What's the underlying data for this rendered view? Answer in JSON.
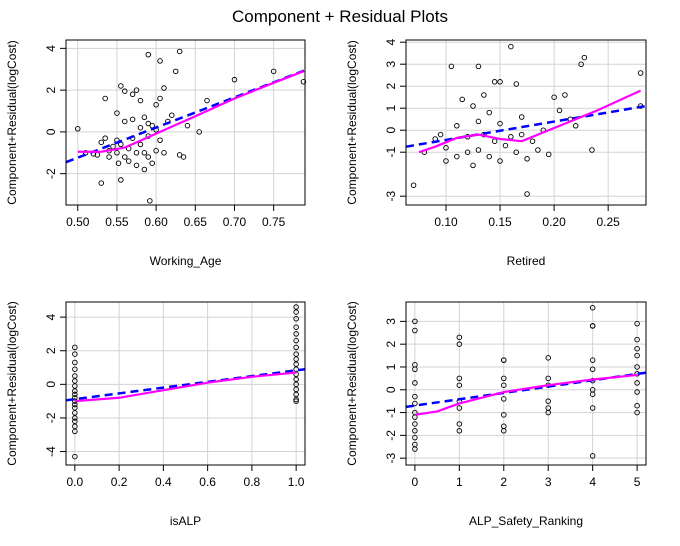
{
  "figure": {
    "title": "Component + Residual Plots",
    "colors": {
      "points": "#000000",
      "linear_fit": "#0000ff",
      "smooth_fit": "#ff00ff",
      "grid": "#d3d3d3"
    }
  },
  "chart_data": [
    {
      "type": "scatter",
      "xlabel": "Working_Age",
      "ylabel": "Component+Residual(logCost)",
      "xlim": [
        0.485,
        0.79
      ],
      "ylim": [
        -3.5,
        4.4
      ],
      "xticks": [
        0.5,
        0.55,
        0.6,
        0.65,
        0.7,
        0.75
      ],
      "xtick_labels": [
        "0.50",
        "0.55",
        "0.60",
        "0.65",
        "0.70",
        "0.75"
      ],
      "yticks": [
        -2,
        0,
        2,
        4
      ],
      "ytick_labels": [
        "-2",
        "0",
        "2",
        "4"
      ],
      "grid": true,
      "points": [
        [
          0.5,
          0.15
        ],
        [
          0.51,
          -1.0
        ],
        [
          0.52,
          -1.05
        ],
        [
          0.525,
          -1.1
        ],
        [
          0.53,
          -2.45
        ],
        [
          0.53,
          -0.5
        ],
        [
          0.535,
          1.6
        ],
        [
          0.535,
          -0.3
        ],
        [
          0.54,
          -0.9
        ],
        [
          0.54,
          -1.2
        ],
        [
          0.545,
          -0.7
        ],
        [
          0.55,
          0.9
        ],
        [
          0.55,
          -1.0
        ],
        [
          0.55,
          -0.4
        ],
        [
          0.552,
          -1.5
        ],
        [
          0.555,
          2.2
        ],
        [
          0.555,
          -0.6
        ],
        [
          0.555,
          -2.3
        ],
        [
          0.56,
          1.95
        ],
        [
          0.56,
          -1.2
        ],
        [
          0.56,
          0.5
        ],
        [
          0.565,
          -0.8
        ],
        [
          0.565,
          -1.4
        ],
        [
          0.57,
          1.8
        ],
        [
          0.57,
          -0.3
        ],
        [
          0.57,
          0.6
        ],
        [
          0.575,
          2.0
        ],
        [
          0.575,
          -1.0
        ],
        [
          0.575,
          -1.6
        ],
        [
          0.58,
          1.5
        ],
        [
          0.58,
          -0.6
        ],
        [
          0.58,
          0.2
        ],
        [
          0.585,
          -1.0
        ],
        [
          0.585,
          -1.8
        ],
        [
          0.585,
          0.7
        ],
        [
          0.59,
          3.7
        ],
        [
          0.59,
          -1.2
        ],
        [
          0.59,
          0.4
        ],
        [
          0.59,
          -0.2
        ],
        [
          0.592,
          -3.3
        ],
        [
          0.595,
          0.3
        ],
        [
          0.595,
          -1.5
        ],
        [
          0.6,
          1.3
        ],
        [
          0.6,
          -0.9
        ],
        [
          0.6,
          0.1
        ],
        [
          0.605,
          3.4
        ],
        [
          0.605,
          1.6
        ],
        [
          0.605,
          -0.4
        ],
        [
          0.61,
          -1.0
        ],
        [
          0.61,
          2.1
        ],
        [
          0.615,
          0.5
        ],
        [
          0.62,
          0.8
        ],
        [
          0.625,
          2.9
        ],
        [
          0.63,
          3.85
        ],
        [
          0.63,
          -1.1
        ],
        [
          0.635,
          -1.2
        ],
        [
          0.64,
          0.3
        ],
        [
          0.655,
          0.0
        ],
        [
          0.665,
          1.5
        ],
        [
          0.7,
          2.5
        ],
        [
          0.75,
          2.9
        ],
        [
          0.788,
          2.4
        ]
      ],
      "linear_fit": [
        [
          0.485,
          -1.45
        ],
        [
          0.79,
          2.95
        ]
      ],
      "smooth_fit": [
        [
          0.5,
          -0.95
        ],
        [
          0.53,
          -0.95
        ],
        [
          0.56,
          -0.75
        ],
        [
          0.59,
          -0.25
        ],
        [
          0.62,
          0.25
        ],
        [
          0.65,
          0.75
        ],
        [
          0.7,
          1.6
        ],
        [
          0.75,
          2.35
        ],
        [
          0.788,
          2.9
        ]
      ]
    },
    {
      "type": "scatter",
      "xlabel": "Retired",
      "ylabel": "Component+Residual(logCost)",
      "xlim": [
        0.063,
        0.285
      ],
      "ylim": [
        -3.4,
        4.1
      ],
      "xticks": [
        0.1,
        0.15,
        0.2,
        0.25
      ],
      "xtick_labels": [
        "0.10",
        "0.15",
        "0.20",
        "0.25"
      ],
      "yticks": [
        -3,
        -1,
        0,
        1,
        2,
        3,
        4
      ],
      "ytick_labels": [
        "-3",
        "-1",
        "0",
        "1",
        "2",
        "3",
        "4"
      ],
      "grid": true,
      "points": [
        [
          0.07,
          -2.5
        ],
        [
          0.08,
          -1.0
        ],
        [
          0.09,
          -0.4
        ],
        [
          0.095,
          -0.2
        ],
        [
          0.1,
          -1.4
        ],
        [
          0.1,
          -0.8
        ],
        [
          0.105,
          2.9
        ],
        [
          0.11,
          -1.2
        ],
        [
          0.11,
          0.2
        ],
        [
          0.115,
          1.4
        ],
        [
          0.12,
          -1.0
        ],
        [
          0.12,
          -0.3
        ],
        [
          0.125,
          1.1
        ],
        [
          0.125,
          -1.6
        ],
        [
          0.13,
          2.9
        ],
        [
          0.13,
          0.4
        ],
        [
          0.13,
          -0.9
        ],
        [
          0.135,
          1.6
        ],
        [
          0.135,
          -0.2
        ],
        [
          0.14,
          -1.2
        ],
        [
          0.14,
          0.8
        ],
        [
          0.145,
          2.2
        ],
        [
          0.145,
          -0.5
        ],
        [
          0.15,
          2.2
        ],
        [
          0.15,
          -1.4
        ],
        [
          0.15,
          0.3
        ],
        [
          0.155,
          -0.7
        ],
        [
          0.16,
          3.8
        ],
        [
          0.16,
          -0.3
        ],
        [
          0.165,
          2.1
        ],
        [
          0.165,
          -1.0
        ],
        [
          0.17,
          -0.2
        ],
        [
          0.17,
          0.6
        ],
        [
          0.175,
          -2.9
        ],
        [
          0.175,
          -1.3
        ],
        [
          0.18,
          -0.5
        ],
        [
          0.185,
          -0.9
        ],
        [
          0.19,
          0.0
        ],
        [
          0.195,
          -1.1
        ],
        [
          0.2,
          1.5
        ],
        [
          0.205,
          0.9
        ],
        [
          0.21,
          1.6
        ],
        [
          0.215,
          0.5
        ],
        [
          0.22,
          0.2
        ],
        [
          0.225,
          3.0
        ],
        [
          0.228,
          3.3
        ],
        [
          0.235,
          -0.9
        ],
        [
          0.28,
          2.6
        ],
        [
          0.28,
          1.1
        ]
      ],
      "linear_fit": [
        [
          0.063,
          -0.75
        ],
        [
          0.285,
          1.1
        ]
      ],
      "smooth_fit": [
        [
          0.075,
          -1.0
        ],
        [
          0.09,
          -0.75
        ],
        [
          0.11,
          -0.35
        ],
        [
          0.13,
          -0.2
        ],
        [
          0.15,
          -0.4
        ],
        [
          0.17,
          -0.5
        ],
        [
          0.19,
          -0.1
        ],
        [
          0.21,
          0.3
        ],
        [
          0.24,
          0.9
        ],
        [
          0.28,
          1.8
        ]
      ]
    },
    {
      "type": "scatter",
      "xlabel": "isALP",
      "ylabel": "Component+Residual(logCost)",
      "xlim": [
        -0.04,
        1.04
      ],
      "ylim": [
        -4.8,
        4.9
      ],
      "xticks": [
        0.0,
        0.2,
        0.4,
        0.6,
        0.8,
        1.0
      ],
      "xtick_labels": [
        "0.0",
        "0.2",
        "0.4",
        "0.6",
        "0.8",
        "1.0"
      ],
      "yticks": [
        -4,
        -2,
        0,
        2,
        4
      ],
      "ytick_labels": [
        "-4",
        "-2",
        "0",
        "2",
        "4"
      ],
      "grid": true,
      "points": [
        [
          0,
          2.2
        ],
        [
          0,
          1.8
        ],
        [
          0,
          1.3
        ],
        [
          0,
          0.9
        ],
        [
          0,
          0.5
        ],
        [
          0,
          0.2
        ],
        [
          0,
          -0.1
        ],
        [
          0,
          -0.4
        ],
        [
          0,
          -0.6
        ],
        [
          0,
          -0.8
        ],
        [
          0,
          -1.0
        ],
        [
          0,
          -1.2
        ],
        [
          0,
          -1.4
        ],
        [
          0,
          -1.7
        ],
        [
          0,
          -2.0
        ],
        [
          0,
          -2.2
        ],
        [
          0,
          -2.5
        ],
        [
          0,
          -2.8
        ],
        [
          0,
          -4.3
        ],
        [
          1,
          4.6
        ],
        [
          1,
          4.3
        ],
        [
          1,
          3.9
        ],
        [
          1,
          3.4
        ],
        [
          1,
          3.0
        ],
        [
          1,
          2.6
        ],
        [
          1,
          2.2
        ],
        [
          1,
          1.8
        ],
        [
          1,
          1.5
        ],
        [
          1,
          1.2
        ],
        [
          1,
          0.9
        ],
        [
          1,
          0.6
        ],
        [
          1,
          0.3
        ],
        [
          1,
          0.0
        ],
        [
          1,
          -0.3
        ],
        [
          1,
          -0.6
        ],
        [
          1,
          -0.9
        ],
        [
          1,
          -1.0
        ]
      ],
      "linear_fit": [
        [
          -0.04,
          -0.95
        ],
        [
          1.04,
          0.9
        ]
      ],
      "smooth_fit": [
        [
          0.0,
          -1.0
        ],
        [
          0.2,
          -0.8
        ],
        [
          0.4,
          -0.35
        ],
        [
          0.6,
          0.1
        ],
        [
          0.8,
          0.45
        ],
        [
          1.0,
          0.7
        ]
      ]
    },
    {
      "type": "scatter",
      "xlabel": "ALP_Safety_Ranking",
      "ylabel": "Component+Residual(logCost)",
      "xlim": [
        -0.2,
        5.2
      ],
      "ylim": [
        -3.3,
        3.85
      ],
      "xticks": [
        0,
        1,
        2,
        3,
        4,
        5
      ],
      "xtick_labels": [
        "0",
        "1",
        "2",
        "3",
        "4",
        "5"
      ],
      "yticks": [
        -3,
        -2,
        -1,
        0,
        1,
        2,
        3
      ],
      "ytick_labels": [
        "-3",
        "-2",
        "-1",
        "0",
        "1",
        "2",
        "3"
      ],
      "grid": true,
      "points": [
        [
          0,
          3.0
        ],
        [
          0,
          2.6
        ],
        [
          0,
          1.1
        ],
        [
          0,
          0.9
        ],
        [
          0,
          0.3
        ],
        [
          0,
          -0.3
        ],
        [
          0,
          -0.6
        ],
        [
          0,
          -1.0
        ],
        [
          0,
          -1.2
        ],
        [
          0,
          -1.5
        ],
        [
          0,
          -1.8
        ],
        [
          0,
          -2.1
        ],
        [
          0,
          -2.4
        ],
        [
          0,
          -2.6
        ],
        [
          1,
          2.3
        ],
        [
          1,
          2.0
        ],
        [
          1,
          0.5
        ],
        [
          1,
          0.2
        ],
        [
          1,
          -0.5
        ],
        [
          1,
          -0.8
        ],
        [
          1,
          -1.5
        ],
        [
          1,
          -1.8
        ],
        [
          2,
          1.3
        ],
        [
          2,
          1.3
        ],
        [
          2,
          0.5
        ],
        [
          2,
          0.2
        ],
        [
          2,
          -0.4
        ],
        [
          2,
          -1.1
        ],
        [
          2,
          -1.6
        ],
        [
          2,
          -1.8
        ],
        [
          3,
          1.4
        ],
        [
          3,
          0.5
        ],
        [
          3,
          0.2
        ],
        [
          3,
          -0.5
        ],
        [
          3,
          -0.8
        ],
        [
          3,
          -1.0
        ],
        [
          4,
          3.6
        ],
        [
          4,
          2.8
        ],
        [
          4,
          2.8
        ],
        [
          4,
          1.3
        ],
        [
          4,
          0.9
        ],
        [
          4,
          0.4
        ],
        [
          4,
          0.0
        ],
        [
          4,
          -0.2
        ],
        [
          4,
          -0.8
        ],
        [
          4,
          -2.9
        ],
        [
          5,
          2.9
        ],
        [
          5,
          2.2
        ],
        [
          5,
          1.8
        ],
        [
          5,
          1.5
        ],
        [
          5,
          1.0
        ],
        [
          5,
          0.7
        ],
        [
          5,
          0.3
        ],
        [
          5,
          -0.1
        ],
        [
          5,
          -0.7
        ],
        [
          5,
          -1.0
        ]
      ],
      "linear_fit": [
        [
          -0.2,
          -0.75
        ],
        [
          5.2,
          0.75
        ]
      ],
      "smooth_fit": [
        [
          0,
          -1.1
        ],
        [
          0.5,
          -0.95
        ],
        [
          1,
          -0.6
        ],
        [
          2,
          -0.1
        ],
        [
          3,
          0.2
        ],
        [
          4,
          0.45
        ],
        [
          5,
          0.65
        ]
      ]
    }
  ]
}
